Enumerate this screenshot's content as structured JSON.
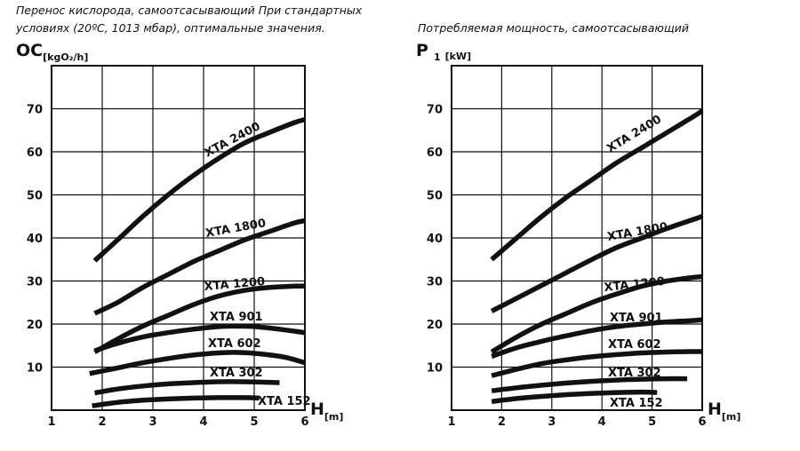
{
  "captions": {
    "left": "Перенос кислорода, самоотсасывающий При стандартных условиях (20ºC, 1013 мбар), оптимальные значения.",
    "right": "Потребляемая мощность, самоотсасывающий"
  },
  "chart_data": [
    {
      "type": "line",
      "ylabel_main": "OC",
      "ylabel_unit": "[kgO₂/h]",
      "xlabel_main": "H",
      "xlabel_unit": "[m]",
      "xlim": [
        1,
        6
      ],
      "ylim": [
        0,
        80
      ],
      "xticks": [
        1,
        2,
        3,
        4,
        5,
        6
      ],
      "yticks": [
        10,
        20,
        30,
        40,
        50,
        60,
        70
      ],
      "grid": true,
      "series": [
        {
          "name": "XTA 2400",
          "x": [
            1.85,
            2.3,
            2.8,
            3.3,
            3.8,
            4.3,
            4.8,
            5.3,
            5.8,
            6.0
          ],
          "y": [
            34.7,
            39.5,
            45.0,
            50.0,
            54.5,
            58.5,
            62.0,
            64.5,
            66.8,
            67.5
          ]
        },
        {
          "name": "XTA 1800",
          "x": [
            1.85,
            2.3,
            2.8,
            3.3,
            3.8,
            4.3,
            4.8,
            5.3,
            5.8,
            6.0
          ],
          "y": [
            22.5,
            25.0,
            28.5,
            31.5,
            34.5,
            37.0,
            39.5,
            41.5,
            43.5,
            44.0
          ]
        },
        {
          "name": "XTA 1200",
          "x": [
            1.85,
            2.3,
            2.8,
            3.3,
            3.8,
            4.3,
            4.8,
            5.3,
            5.8,
            6.0
          ],
          "y": [
            13.5,
            16.5,
            19.5,
            22.0,
            24.5,
            26.5,
            27.8,
            28.5,
            28.8,
            28.8
          ]
        },
        {
          "name": "XTA 901",
          "x": [
            1.85,
            2.3,
            2.8,
            3.3,
            3.8,
            4.3,
            4.6,
            5.0,
            5.5,
            6.0
          ],
          "y": [
            13.8,
            15.5,
            17.0,
            18.0,
            18.8,
            19.4,
            19.5,
            19.4,
            18.8,
            18.0
          ]
        },
        {
          "name": "XTA 602",
          "x": [
            1.75,
            2.3,
            2.8,
            3.3,
            3.8,
            4.3,
            4.7,
            5.1,
            5.6,
            6.0
          ],
          "y": [
            8.5,
            9.8,
            11.0,
            12.0,
            12.8,
            13.3,
            13.4,
            13.1,
            12.3,
            11.0
          ]
        },
        {
          "name": "XTA 302",
          "x": [
            1.85,
            2.3,
            2.8,
            3.3,
            3.8,
            4.3,
            4.8,
            5.5
          ],
          "y": [
            4.0,
            4.9,
            5.6,
            6.1,
            6.4,
            6.6,
            6.6,
            6.4
          ]
        },
        {
          "name": "XTA 152",
          "x": [
            1.8,
            2.3,
            2.8,
            3.3,
            3.8,
            4.3,
            4.8,
            5.1
          ],
          "y": [
            1.0,
            1.8,
            2.3,
            2.6,
            2.8,
            2.9,
            2.9,
            2.8
          ]
        }
      ]
    },
    {
      "type": "line",
      "ylabel_main": "P",
      "ylabel_sub": "1",
      "ylabel_unit": "[kW]",
      "xlabel_main": "H",
      "xlabel_unit": "[m]",
      "xlim": [
        1,
        6
      ],
      "ylim": [
        0,
        80
      ],
      "xticks": [
        1,
        2,
        3,
        4,
        5,
        6
      ],
      "yticks": [
        10,
        20,
        30,
        40,
        50,
        60,
        70
      ],
      "grid": true,
      "series": [
        {
          "name": "XTA 2400",
          "x": [
            1.8,
            2.3,
            2.8,
            3.3,
            3.8,
            4.3,
            4.8,
            5.3,
            5.8,
            6.0
          ],
          "y": [
            35.0,
            40.0,
            45.0,
            49.5,
            53.5,
            57.5,
            61.0,
            64.5,
            68.0,
            69.5
          ]
        },
        {
          "name": "XTA 1800",
          "x": [
            1.8,
            2.3,
            2.8,
            3.3,
            3.8,
            4.3,
            4.8,
            5.3,
            5.8,
            6.0
          ],
          "y": [
            23.0,
            26.0,
            29.0,
            32.0,
            35.0,
            37.8,
            40.0,
            42.2,
            44.2,
            45.0
          ]
        },
        {
          "name": "XTA 1200",
          "x": [
            1.8,
            2.3,
            2.8,
            3.3,
            3.8,
            4.3,
            4.8,
            5.3,
            5.8,
            6.0
          ],
          "y": [
            13.5,
            17.0,
            20.0,
            22.5,
            25.0,
            27.0,
            28.8,
            30.0,
            30.8,
            31.0
          ]
        },
        {
          "name": "XTA 901",
          "x": [
            1.8,
            2.3,
            2.8,
            3.3,
            3.8,
            4.3,
            4.8,
            5.3,
            5.8,
            6.0
          ],
          "y": [
            12.5,
            14.5,
            16.0,
            17.3,
            18.5,
            19.4,
            20.0,
            20.5,
            20.8,
            21.0
          ]
        },
        {
          "name": "XTA 602",
          "x": [
            1.8,
            2.3,
            2.8,
            3.3,
            3.8,
            4.3,
            4.8,
            5.3,
            5.8,
            6.0
          ],
          "y": [
            8.0,
            9.5,
            10.8,
            11.7,
            12.4,
            12.9,
            13.3,
            13.5,
            13.6,
            13.6
          ]
        },
        {
          "name": "XTA 302",
          "x": [
            1.8,
            2.3,
            2.8,
            3.3,
            3.8,
            4.3,
            4.8,
            5.3,
            5.7
          ],
          "y": [
            4.5,
            5.2,
            5.8,
            6.3,
            6.7,
            7.0,
            7.2,
            7.3,
            7.3
          ]
        },
        {
          "name": "XTA 152",
          "x": [
            1.8,
            2.3,
            2.8,
            3.3,
            3.8,
            4.3,
            4.8,
            5.1
          ],
          "y": [
            2.0,
            2.7,
            3.2,
            3.6,
            3.9,
            4.1,
            4.2,
            4.1
          ]
        }
      ]
    }
  ]
}
